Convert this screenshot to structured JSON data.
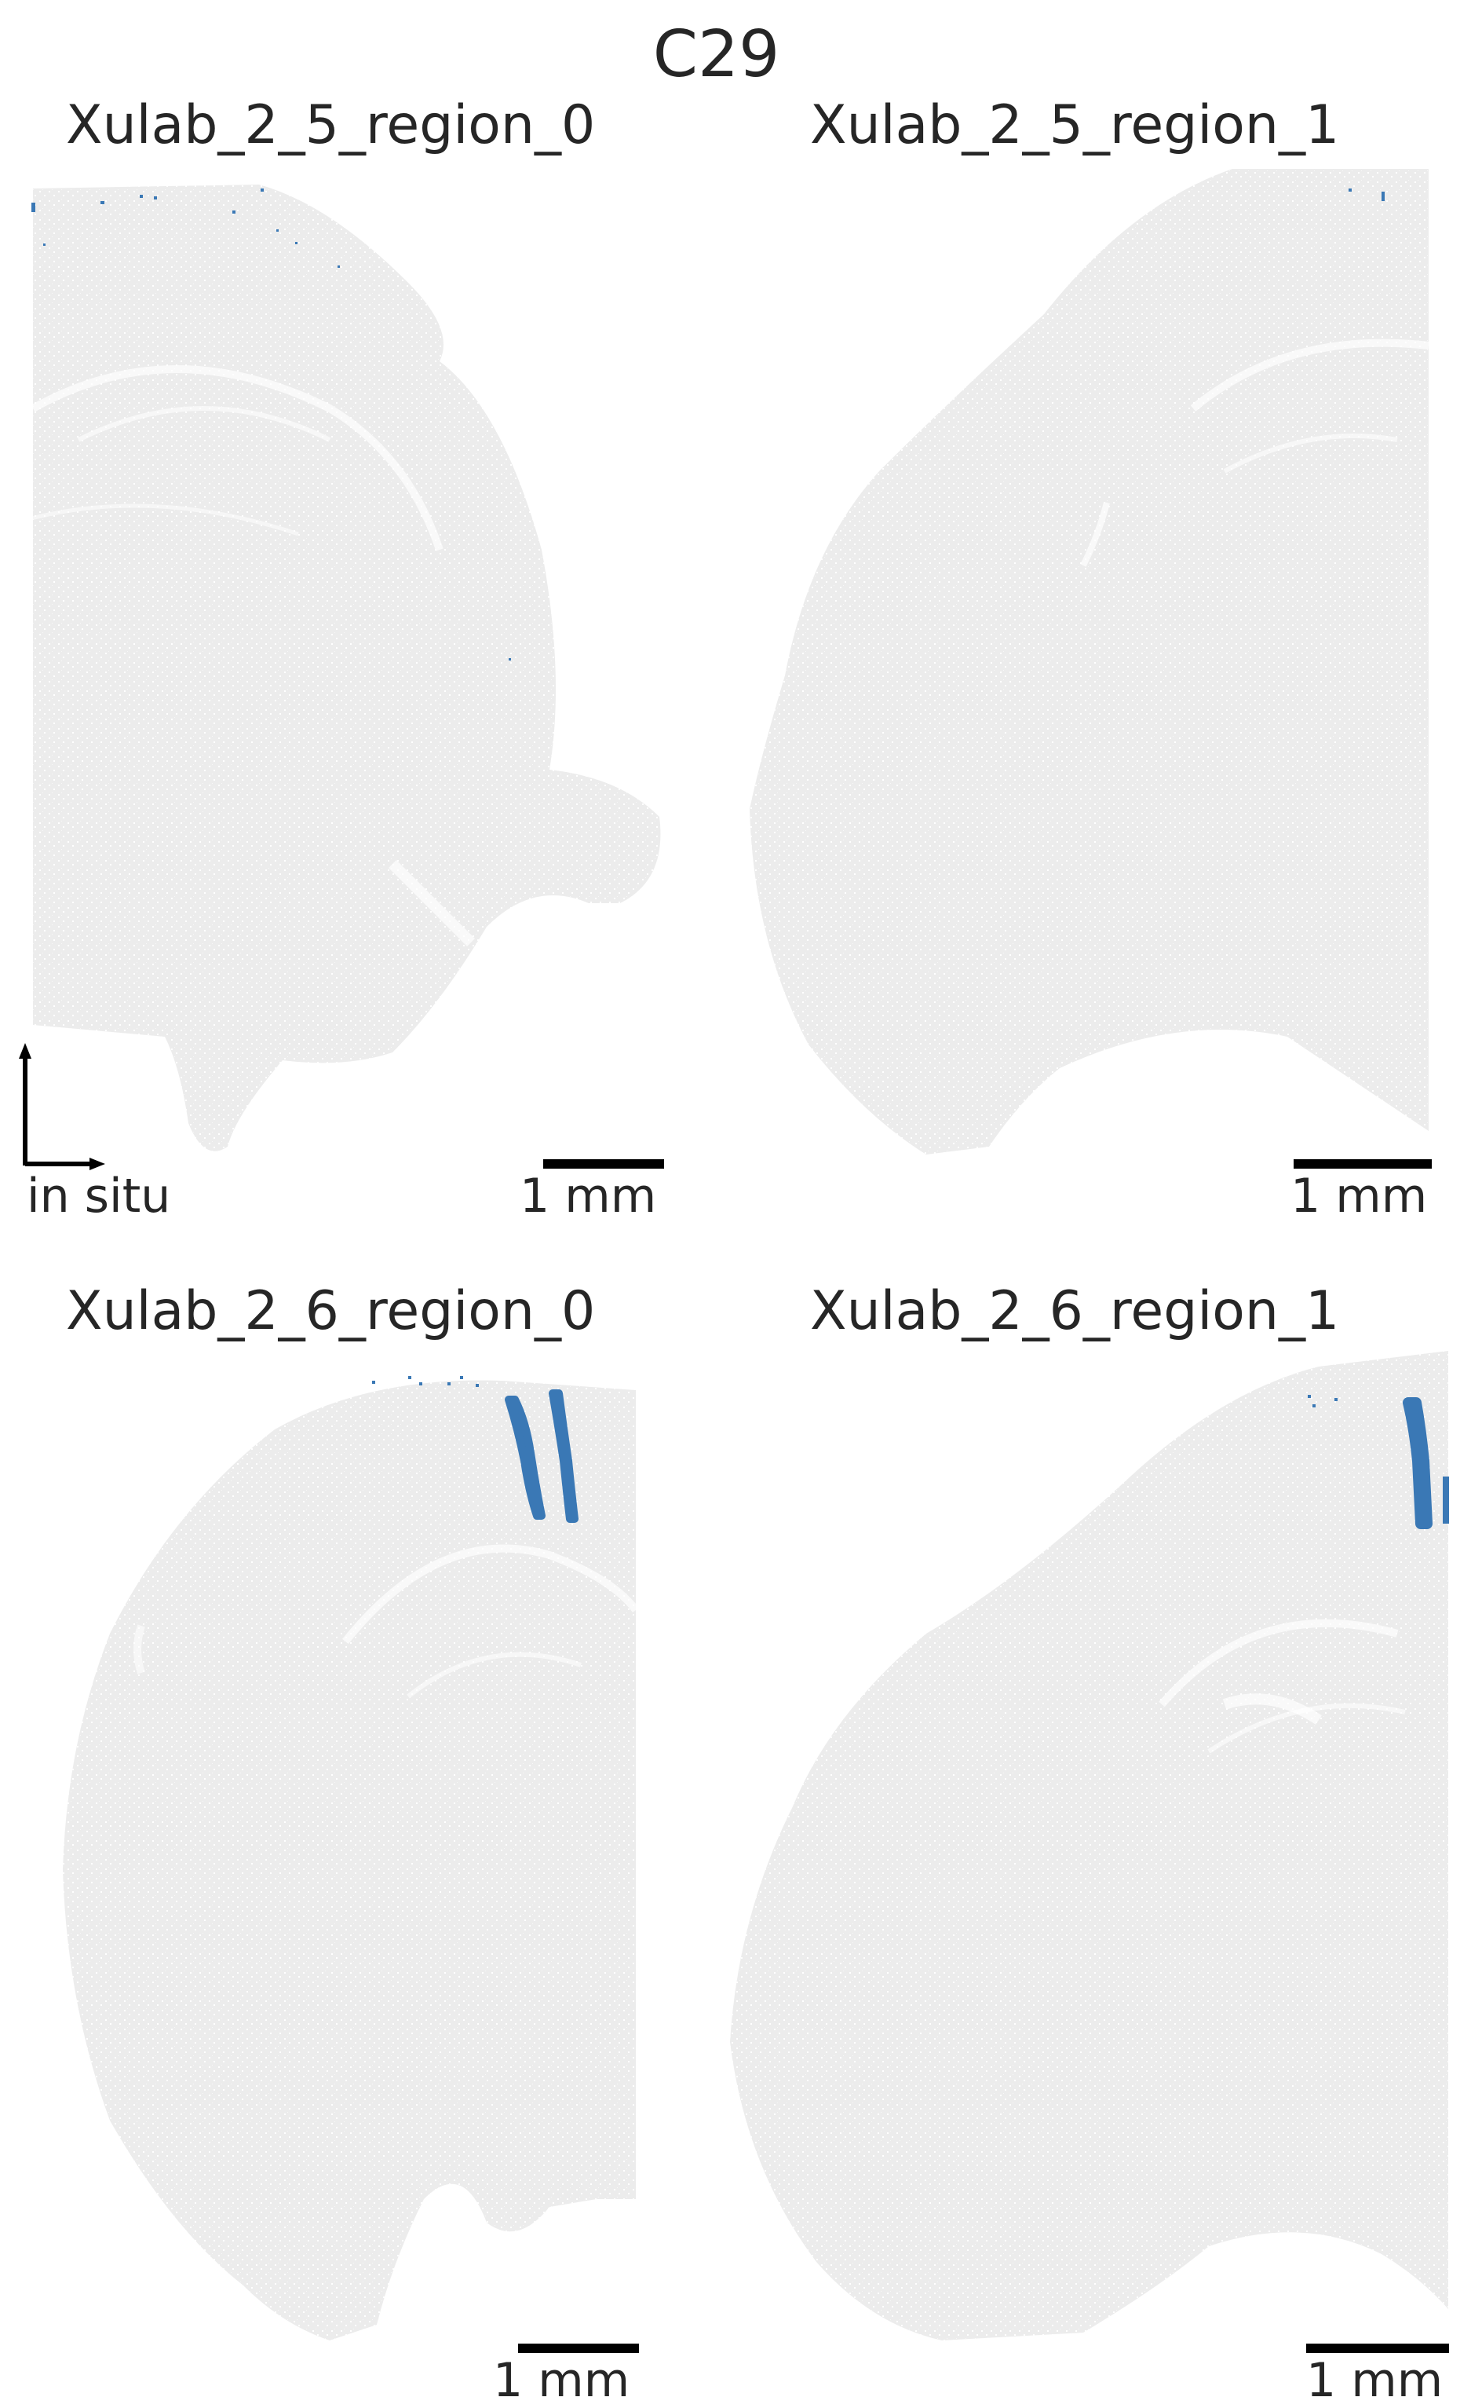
{
  "figure": {
    "title": "C29",
    "panels": [
      {
        "title": "Xulab_2_5_region_0",
        "scale_bar_label": "1 mm"
      },
      {
        "title": "Xulab_2_5_region_1",
        "scale_bar_label": "1 mm"
      },
      {
        "title": "Xulab_2_6_region_0",
        "scale_bar_label": "1 mm"
      },
      {
        "title": "Xulab_2_6_region_1",
        "scale_bar_label": "1 mm"
      }
    ],
    "axis_indicator_label": "in situ",
    "colors": {
      "tissue": "#ececec",
      "highlight": "#3a78b5",
      "text": "#262626",
      "scale_bar": "#000000"
    }
  }
}
